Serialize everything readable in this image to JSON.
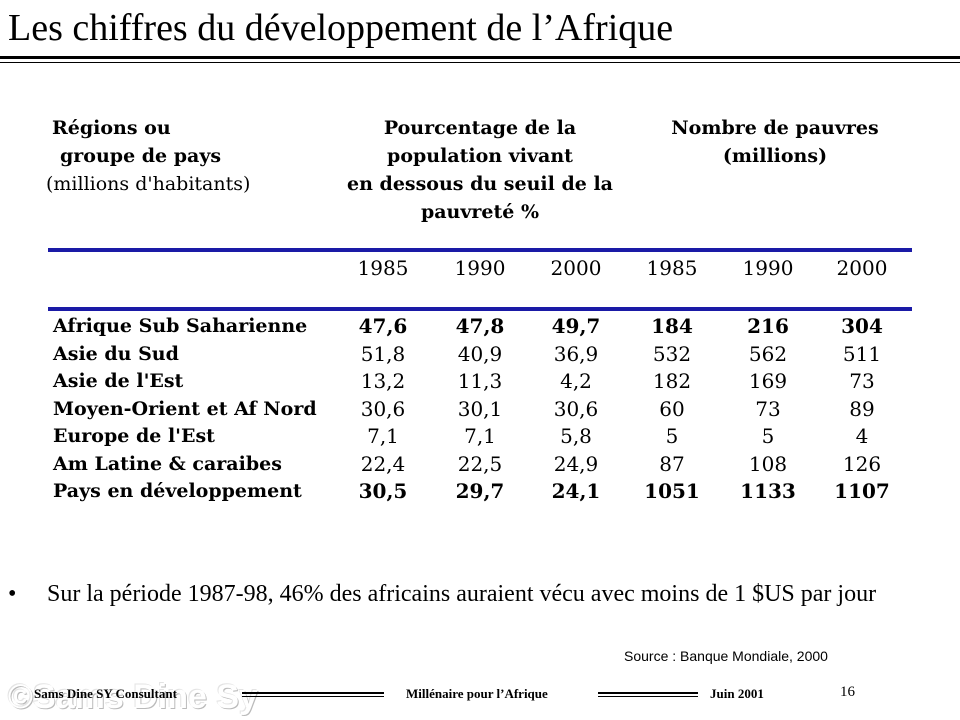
{
  "title": "Les chiffres du développement de l’Afrique",
  "table": {
    "header_region": [
      "Régions ou",
      "groupe de pays",
      "(millions d'habitants)"
    ],
    "header_pct": [
      "Pourcentage de la",
      "population vivant",
      "en dessous du seuil de la",
      "pauvreté %"
    ],
    "header_poor": [
      "Nombre de pauvres",
      "(millions)"
    ],
    "years": [
      "1985",
      "1990",
      "2000",
      "1985",
      "1990",
      "2000"
    ],
    "rows": [
      {
        "label": "Afrique Sub Saharienne",
        "bold": true,
        "values": [
          "47,6",
          "47,8",
          "49,7",
          "184",
          "216",
          "304"
        ]
      },
      {
        "label": "Asie du Sud",
        "bold": false,
        "values": [
          "51,8",
          "40,9",
          "36,9",
          "532",
          "562",
          "511"
        ]
      },
      {
        "label": "Asie de l'Est",
        "bold": false,
        "values": [
          "13,2",
          "11,3",
          "4,2",
          "182",
          "169",
          "73"
        ]
      },
      {
        "label": "Moyen-Orient et Af Nord",
        "bold": false,
        "values": [
          "30,6",
          "30,1",
          "30,6",
          "60",
          "73",
          "89"
        ]
      },
      {
        "label": "Europe de l'Est",
        "bold": false,
        "values": [
          "7,1",
          "7,1",
          "5,8",
          "5",
          "5",
          "4"
        ]
      },
      {
        "label": "Am Latine & caraibes",
        "bold": false,
        "values": [
          "22,4",
          "22,5",
          "24,9",
          "87",
          "108",
          "126"
        ]
      },
      {
        "label": "Pays en développement",
        "bold": true,
        "values": [
          "30,5",
          "29,7",
          "24,1",
          "1051",
          "1133",
          "1107"
        ]
      }
    ]
  },
  "bullet": {
    "symbol": "•",
    "text": "Sur la période 1987-98, 46% des africains auraient vécu avec moins de 1 $US par jour"
  },
  "source": "Source : Banque Mondiale, 2000",
  "footer": {
    "left": "Sams Dine SY Consultant",
    "middle": "Millénaire pour l’Afrique",
    "date": "Juin 2001",
    "page": "16",
    "watermark": "©Sams Dine Sy"
  },
  "colors": {
    "rule": "#1a1aa6",
    "text": "#000000",
    "background": "#ffffff"
  }
}
